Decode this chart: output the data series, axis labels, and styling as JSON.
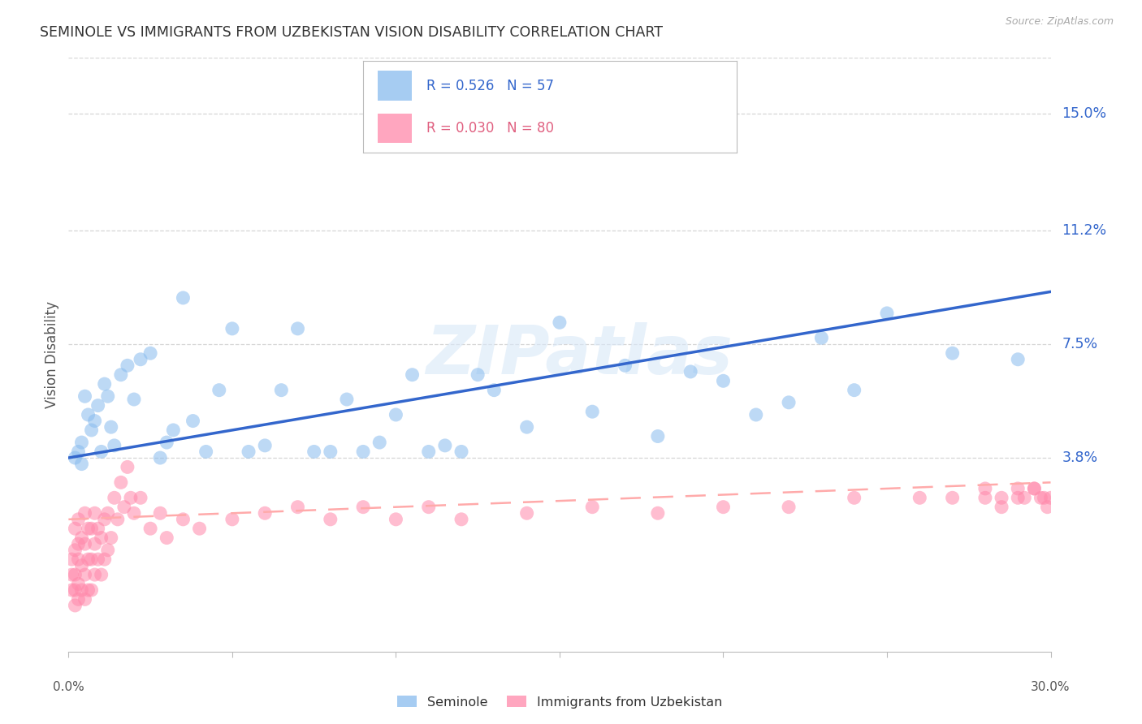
{
  "title": "SEMINOLE VS IMMIGRANTS FROM UZBEKISTAN VISION DISABILITY CORRELATION CHART",
  "source": "Source: ZipAtlas.com",
  "ylabel": "Vision Disability",
  "ytick_labels": [
    "3.8%",
    "7.5%",
    "11.2%",
    "15.0%"
  ],
  "ytick_values": [
    0.038,
    0.075,
    0.112,
    0.15
  ],
  "xlim": [
    0.0,
    0.3
  ],
  "ylim": [
    -0.025,
    0.168
  ],
  "blue_R": 0.526,
  "blue_N": 57,
  "pink_R": 0.03,
  "pink_N": 80,
  "blue_color": "#88BBEE",
  "pink_color": "#FF88AA",
  "blue_trend_color": "#3366CC",
  "pink_trend_color": "#FFAAAA",
  "watermark": "ZIPatlas",
  "legend_label_blue": "Seminole",
  "legend_label_pink": "Immigrants from Uzbekistan",
  "background_color": "#FFFFFF",
  "grid_color": "#CCCCCC",
  "blue_x": [
    0.002,
    0.003,
    0.004,
    0.004,
    0.005,
    0.006,
    0.007,
    0.008,
    0.009,
    0.01,
    0.011,
    0.012,
    0.013,
    0.014,
    0.016,
    0.018,
    0.02,
    0.022,
    0.025,
    0.028,
    0.03,
    0.032,
    0.035,
    0.038,
    0.042,
    0.046,
    0.05,
    0.055,
    0.06,
    0.065,
    0.07,
    0.075,
    0.08,
    0.085,
    0.09,
    0.095,
    0.1,
    0.105,
    0.11,
    0.115,
    0.12,
    0.125,
    0.13,
    0.14,
    0.15,
    0.16,
    0.17,
    0.18,
    0.19,
    0.2,
    0.21,
    0.22,
    0.23,
    0.24,
    0.25,
    0.27,
    0.29
  ],
  "blue_y": [
    0.038,
    0.04,
    0.036,
    0.043,
    0.058,
    0.052,
    0.047,
    0.05,
    0.055,
    0.04,
    0.062,
    0.058,
    0.048,
    0.042,
    0.065,
    0.068,
    0.057,
    0.07,
    0.072,
    0.038,
    0.043,
    0.047,
    0.09,
    0.05,
    0.04,
    0.06,
    0.08,
    0.04,
    0.042,
    0.06,
    0.08,
    0.04,
    0.04,
    0.057,
    0.04,
    0.043,
    0.052,
    0.065,
    0.04,
    0.042,
    0.04,
    0.065,
    0.06,
    0.048,
    0.082,
    0.053,
    0.068,
    0.045,
    0.066,
    0.063,
    0.052,
    0.056,
    0.077,
    0.06,
    0.085,
    0.072,
    0.07
  ],
  "pink_x": [
    0.001,
    0.001,
    0.001,
    0.002,
    0.002,
    0.002,
    0.002,
    0.002,
    0.003,
    0.003,
    0.003,
    0.003,
    0.003,
    0.004,
    0.004,
    0.004,
    0.005,
    0.005,
    0.005,
    0.005,
    0.006,
    0.006,
    0.006,
    0.007,
    0.007,
    0.007,
    0.008,
    0.008,
    0.008,
    0.009,
    0.009,
    0.01,
    0.01,
    0.011,
    0.011,
    0.012,
    0.012,
    0.013,
    0.014,
    0.015,
    0.016,
    0.017,
    0.018,
    0.019,
    0.02,
    0.022,
    0.025,
    0.028,
    0.03,
    0.035,
    0.04,
    0.05,
    0.06,
    0.07,
    0.08,
    0.09,
    0.1,
    0.11,
    0.12,
    0.14,
    0.16,
    0.18,
    0.2,
    0.22,
    0.24,
    0.26,
    0.27,
    0.28,
    0.285,
    0.29,
    0.292,
    0.295,
    0.297,
    0.298,
    0.299,
    0.3,
    0.295,
    0.29,
    0.285,
    0.28
  ],
  "pink_y": [
    -0.005,
    0.0,
    0.005,
    -0.01,
    -0.005,
    0.0,
    0.008,
    0.015,
    -0.008,
    -0.003,
    0.005,
    0.01,
    0.018,
    -0.005,
    0.003,
    0.012,
    -0.008,
    0.0,
    0.01,
    0.02,
    -0.005,
    0.005,
    0.015,
    -0.005,
    0.005,
    0.015,
    0.0,
    0.01,
    0.02,
    0.005,
    0.015,
    0.0,
    0.012,
    0.005,
    0.018,
    0.008,
    0.02,
    0.012,
    0.025,
    0.018,
    0.03,
    0.022,
    0.035,
    0.025,
    0.02,
    0.025,
    0.015,
    0.02,
    0.012,
    0.018,
    0.015,
    0.018,
    0.02,
    0.022,
    0.018,
    0.022,
    0.018,
    0.022,
    0.018,
    0.02,
    0.022,
    0.02,
    0.022,
    0.022,
    0.025,
    0.025,
    0.025,
    0.028,
    0.025,
    0.028,
    0.025,
    0.028,
    0.025,
    0.025,
    0.022,
    0.025,
    0.028,
    0.025,
    0.022,
    0.025
  ]
}
